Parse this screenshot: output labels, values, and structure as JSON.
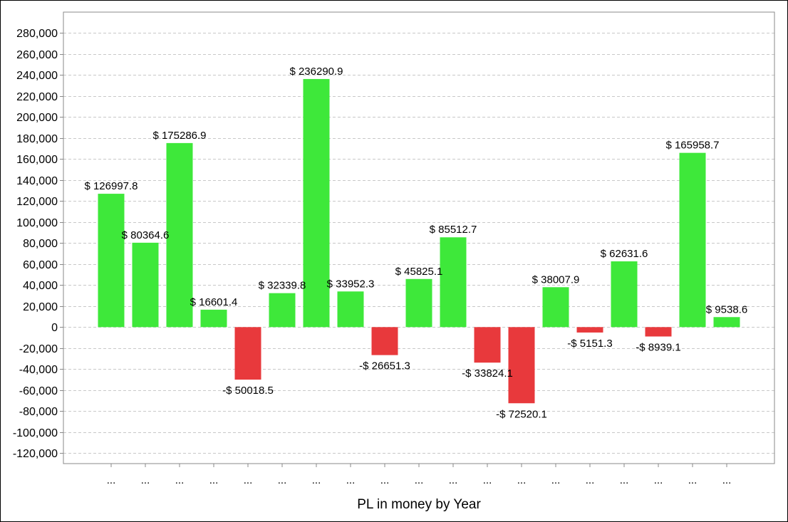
{
  "chart_data": {
    "type": "bar",
    "title": "",
    "xlabel": "PL in money by Year",
    "ylabel": "",
    "ylim": [
      -130000,
      300000
    ],
    "yticks": [
      280000,
      260000,
      240000,
      220000,
      200000,
      180000,
      160000,
      140000,
      120000,
      100000,
      80000,
      60000,
      40000,
      20000,
      0,
      -20000,
      -40000,
      -60000,
      -80000,
      -100000,
      -120000
    ],
    "ytick_labels": [
      "280,000",
      "260,000",
      "240,000",
      "220,000",
      "200,000",
      "180,000",
      "160,000",
      "140,000",
      "120,000",
      "100,000",
      "80,000",
      "60,000",
      "40,000",
      "20,000",
      "0",
      "-20,000",
      "-40,000",
      "-60,000",
      "-80,000",
      "-100,000",
      "-120,000"
    ],
    "grid": true,
    "legend": "none",
    "categories": [
      "...",
      "...",
      "...",
      "...",
      "...",
      "...",
      "...",
      "...",
      "...",
      "...",
      "...",
      "...",
      "...",
      "...",
      "...",
      "...",
      "...",
      "...",
      "..."
    ],
    "values": [
      126997.8,
      80364.6,
      175286.9,
      16601.4,
      -50018.5,
      32339.8,
      236290.9,
      33952.3,
      -26651.3,
      45825.1,
      85512.7,
      -33824.1,
      -72520.1,
      38007.9,
      -5151.3,
      62631.6,
      -8939.1,
      165958.7,
      9538.6
    ],
    "data_labels": [
      "$ 126997.8",
      "$ 80364.6",
      "$ 175286.9",
      "$ 16601.4",
      "-$ 50018.5",
      "$ 32339.8",
      "$ 236290.9",
      "$ 33952.3",
      "-$ 26651.3",
      "$ 45825.1",
      "$ 85512.7",
      "-$ 33824.1",
      "-$ 72520.1",
      "$ 38007.9",
      "-$ 5151.3",
      "$ 62631.6",
      "-$ 8939.1",
      "$ 165958.7",
      "$ 9538.6"
    ],
    "colors": {
      "positive": "#3ee83a",
      "negative": "#e8393c",
      "grid": "#c8c8c8",
      "axis": "#888888"
    }
  }
}
